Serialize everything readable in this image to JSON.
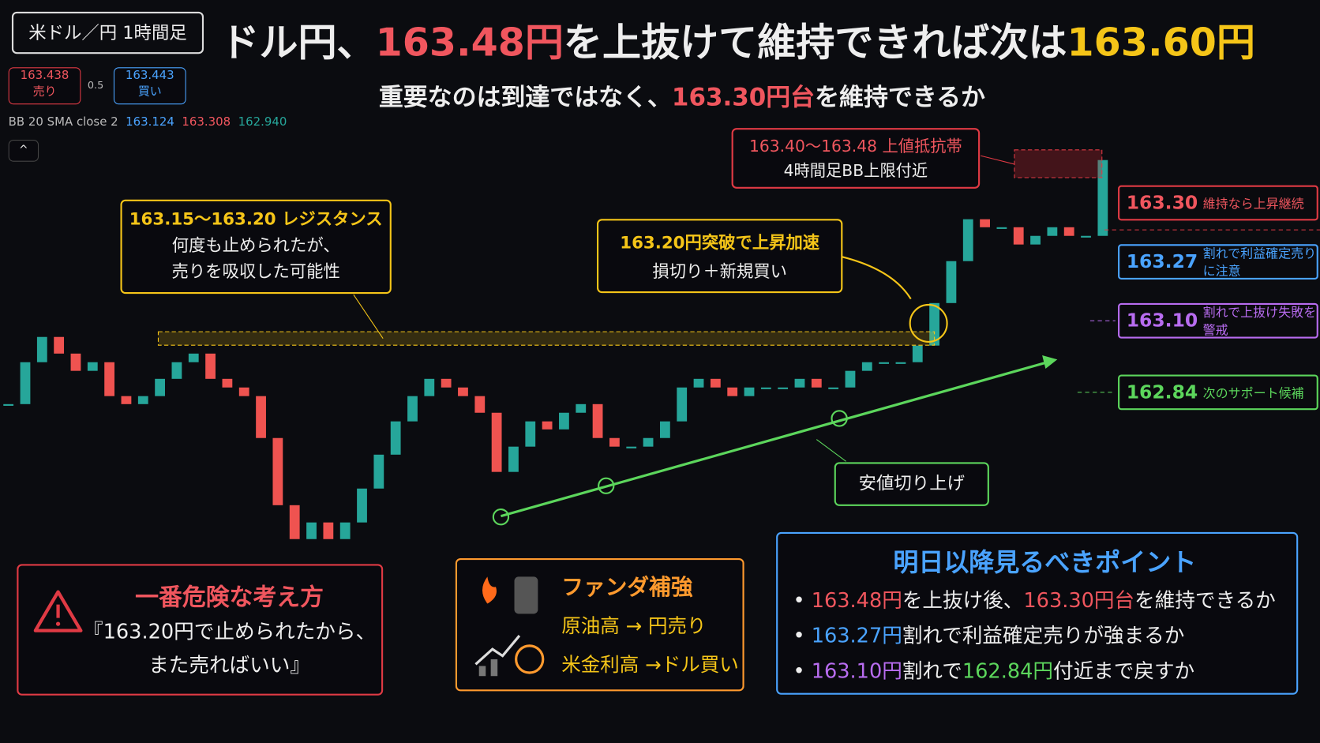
{
  "header": {
    "symbol": "米ドル／円 1時間足",
    "title_parts": [
      "ドル円、",
      "163.48円",
      "を上抜けて維持できれば次は",
      "163.60円"
    ],
    "subtitle_parts": [
      "重要なのは到達ではなく、",
      "163.30円台",
      "を維持できるか"
    ]
  },
  "ticker": {
    "sell_price": "163.438",
    "sell_label": "売り",
    "spread": "0.5",
    "buy_price": "163.443",
    "buy_label": "買い"
  },
  "indicator": {
    "name": "BB 20 SMA close 2",
    "mid": "163.124",
    "upper": "163.308",
    "lower": "162.940"
  },
  "chart_data": {
    "type": "candlestick",
    "close": [
      163.091,
      163.159,
      163.2,
      163.173,
      163.145,
      163.159,
      163.104,
      163.091,
      163.104,
      163.132,
      163.159,
      163.173,
      163.132,
      163.118,
      163.104,
      163.036,
      162.927,
      162.872,
      162.899,
      162.872,
      162.899,
      162.954,
      163.009,
      163.063,
      163.104,
      163.132,
      163.118,
      163.104,
      163.077,
      162.981,
      163.022,
      163.063,
      163.05,
      163.077,
      163.091,
      163.036,
      163.022,
      163.022,
      163.036,
      163.063,
      163.118,
      163.132,
      163.118,
      163.104,
      163.118,
      163.118,
      163.118,
      163.132,
      163.118,
      163.118,
      163.145,
      163.159,
      163.159,
      163.159,
      163.186,
      163.255,
      163.323,
      163.391,
      163.378,
      163.378,
      163.35,
      163.364,
      163.378,
      163.364,
      163.364,
      163.487
    ],
    "ylim": [
      162.8,
      163.55
    ],
    "up_color": "#26a69a",
    "down_color": "#ef5350"
  },
  "annotations": {
    "resistance": {
      "title": "163.15〜163.20 レジスタンス",
      "lines": [
        "何度も止められたが、",
        "売りを吸収した可能性"
      ]
    },
    "breakout": {
      "title": "163.20円突破で上昇加速",
      "line": "損切り＋新規買い"
    },
    "upper_band": {
      "title": "163.40〜163.48 上値抵抗帯",
      "line": "4時間足BB上限付近"
    },
    "higher_lows": "安値切り上げ",
    "levels": [
      {
        "price": "163.30",
        "text": "維持なら上昇継続"
      },
      {
        "price": "163.27",
        "text": "割れで利益確定売りに注意"
      },
      {
        "price": "163.10",
        "text": "割れで上抜け失敗を警戒"
      },
      {
        "price": "162.84",
        "text": "次のサポート候補"
      }
    ]
  },
  "danger": {
    "title": "一番危険な考え方",
    "lines": [
      "『163.20円で止められたから、",
      "また売ればいい』"
    ]
  },
  "fundamentals": {
    "title": "ファンダ補強",
    "rows": [
      "原油高 → 円売り",
      "米金利高 →ドル買い"
    ]
  },
  "points": {
    "title": "明日以降見るべきポイント",
    "items": [
      [
        "163.48円",
        "を上抜け後、",
        "163.30円台",
        "を維持できるか"
      ],
      [
        "163.27円",
        "割れで利益確定売りが強まるか"
      ],
      [
        "163.10円",
        "割れで",
        "162.84円",
        "付近まで戻すか"
      ]
    ]
  }
}
